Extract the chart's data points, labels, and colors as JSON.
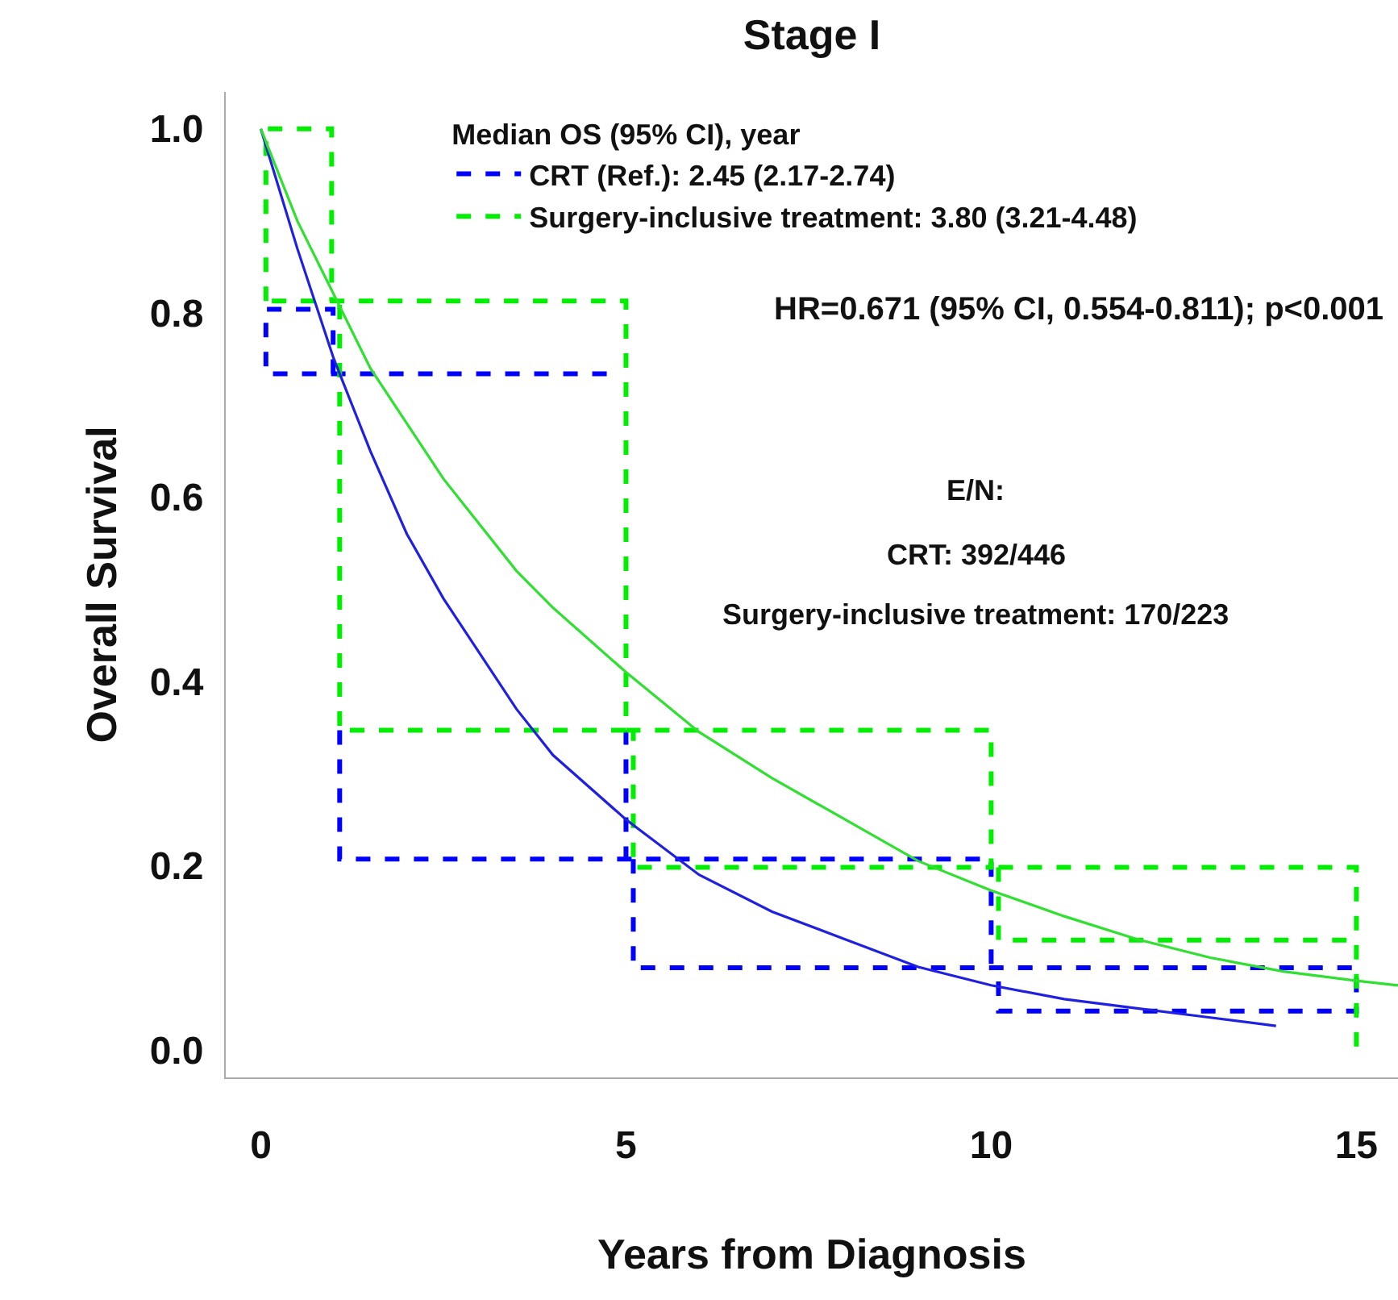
{
  "chart_data": {
    "type": "line",
    "title": "Stage I",
    "xlabel": "Years from Diagnosis",
    "ylabel": "Overall Survival",
    "legend_title": "Median OS (95% CI), year",
    "legend": "top",
    "xlim": [
      -0.48,
      15.57
    ],
    "ylim": [
      -0.03,
      1.04
    ],
    "xticks": [
      0,
      5,
      10,
      15
    ],
    "yticks": [
      {
        "value": 0,
        "label": "0.0"
      },
      {
        "value": 0.2,
        "label": "0.2"
      },
      {
        "value": 0.4,
        "label": "0.4"
      },
      {
        "value": 0.6,
        "label": "0.6"
      },
      {
        "value": 0.8,
        "label": "0.8"
      },
      {
        "value": 1,
        "label": "1.0"
      }
    ],
    "annotations": [
      "HR=0.671 (95% CI, 0.554-0.811); p<0.001",
      "E/N:",
      "CRT: 392/446",
      "Surgery-inclusive treatment: 170/223"
    ],
    "series": [
      {
        "name": "CRT (Ref.): 2.45 (2.17-2.74)",
        "color": "#0000ff",
        "line_style": "dashed",
        "x": [
          0.99,
          0.99,
          0.07,
          0.07,
          4.8,
          null,
          1.08,
          1.08,
          10.0,
          10.0,
          null,
          5.0,
          5.0,
          null,
          5.1,
          5.1,
          15.0,
          15.0,
          10.1,
          10.1
        ],
        "values": [
          0.734,
          0.804,
          0.804,
          0.734,
          0.734,
          null,
          0.347,
          0.207,
          0.207,
          0.089,
          null,
          0.347,
          0.207,
          null,
          0.207,
          0.089,
          0.089,
          0.042,
          0.042,
          0.089
        ]
      },
      {
        "name": "Surgery-inclusive treatment: 3.80 (3.21-4.48)",
        "color": "#00ee00",
        "line_style": "dashed",
        "x": [
          0.07,
          0.07,
          0.97,
          0.97,
          null,
          0.15,
          5.0,
          5.0,
          1.08,
          1.08,
          null,
          5.0,
          10.0,
          10.0,
          5.1,
          5.1,
          null,
          10.1,
          15.0,
          15.0,
          null,
          10.1,
          10.1,
          15.0
        ],
        "values": [
          0.813,
          1.0,
          1.0,
          0.813,
          null,
          0.813,
          0.813,
          0.347,
          0.347,
          0.813,
          null,
          0.347,
          0.347,
          0.198,
          0.198,
          0.347,
          null,
          0.198,
          0.198,
          0.0,
          null,
          0.198,
          0.119,
          0.119
        ]
      },
      {
        "color": "#2020e0",
        "line_style": "solid",
        "x": [
          0,
          0.5,
          1,
          1.5,
          2,
          2.5,
          3,
          3.5,
          4,
          5,
          6,
          7,
          8,
          9,
          10,
          11,
          12,
          13,
          13.9
        ],
        "values": [
          1.0,
          0.87,
          0.75,
          0.65,
          0.56,
          0.49,
          0.43,
          0.37,
          0.32,
          0.25,
          0.19,
          0.15,
          0.12,
          0.09,
          0.07,
          0.055,
          0.045,
          0.035,
          0.026
        ]
      },
      {
        "color": "#30e030",
        "line_style": "solid",
        "x": [
          0,
          0.5,
          1,
          1.5,
          2,
          2.5,
          3,
          3.5,
          4,
          5,
          6,
          7,
          8,
          9,
          10,
          11,
          12,
          13,
          14,
          15,
          15.57
        ],
        "values": [
          1.0,
          0.9,
          0.82,
          0.74,
          0.68,
          0.62,
          0.57,
          0.52,
          0.48,
          0.41,
          0.345,
          0.295,
          0.25,
          0.205,
          0.173,
          0.145,
          0.12,
          0.1,
          0.085,
          0.075,
          0.07
        ]
      }
    ]
  }
}
